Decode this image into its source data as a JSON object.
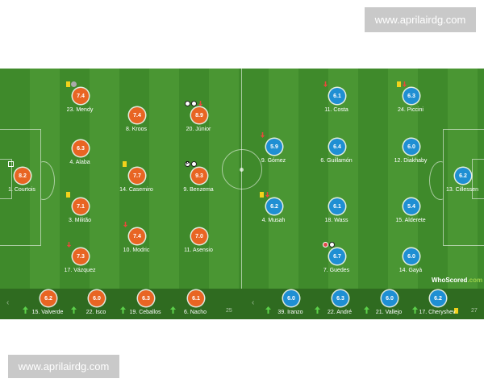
{
  "watermark": {
    "top": "www.aprilairdg.com",
    "bottom": "www.aprilairdg.com"
  },
  "brand": {
    "who": "WhoScored",
    "dot": ".com"
  },
  "colors": {
    "home": "#e86523",
    "away": "#1f8fd3",
    "pitch": "#3f8a2b",
    "card": "#f2d21b"
  },
  "home": {
    "starters": [
      {
        "num": "23",
        "name": "Mendy",
        "rating": "7.4",
        "icons": [
          "yellow-card",
          "assist-icon"
        ]
      },
      {
        "num": "4",
        "name": "Alaba",
        "rating": "6.3",
        "icons": []
      },
      {
        "num": "3",
        "name": "Militão",
        "rating": "7.1",
        "icons": [
          "yellow-card"
        ]
      },
      {
        "num": "17",
        "name": "Vázquez",
        "rating": "7.3",
        "icons": [
          "sub-off-arrow"
        ]
      },
      {
        "num": "1",
        "name": "Courtois",
        "rating": "8.2",
        "icons": [
          "gloves-icon"
        ]
      },
      {
        "num": "8",
        "name": "Kroos",
        "rating": "7.4",
        "icons": []
      },
      {
        "num": "14",
        "name": "Casemiro",
        "rating": "7.7",
        "icons": [
          "yellow-card"
        ]
      },
      {
        "num": "10",
        "name": "Modric",
        "rating": "7.4",
        "icons": [
          "sub-off-arrow"
        ]
      },
      {
        "num": "20",
        "name": "Júnior",
        "rating": "8.9",
        "icons": [
          "goal-ball",
          "goal-ball",
          "sub-off-arrow"
        ]
      },
      {
        "num": "9",
        "name": "Benzema",
        "rating": "9.3",
        "icons": [
          "penalty-goal",
          "goal-ball"
        ]
      },
      {
        "num": "11",
        "name": "Asensio",
        "rating": "7.0",
        "icons": []
      }
    ],
    "subs": [
      {
        "num": "15",
        "name": "Valverde",
        "rating": "6.2"
      },
      {
        "num": "22",
        "name": "Isco",
        "rating": "6.0"
      },
      {
        "num": "19",
        "name": "Ceballos",
        "rating": "6.3"
      },
      {
        "num": "6",
        "name": "Nacho",
        "rating": "6.1"
      }
    ],
    "count": "25"
  },
  "away": {
    "starters": [
      {
        "num": "11",
        "name": "Costa",
        "rating": "6.1",
        "icons": [
          "sub-off-arrow"
        ]
      },
      {
        "num": "24",
        "name": "Piccini",
        "rating": "6.3",
        "icons": [
          "yellow-card",
          "sub-off-arrow"
        ]
      },
      {
        "num": "9",
        "name": "Gómez",
        "rating": "5.9",
        "icons": [
          "sub-off-arrow"
        ]
      },
      {
        "num": "6",
        "name": "Guillamón",
        "rating": "6.4",
        "icons": []
      },
      {
        "num": "12",
        "name": "Diakhaby",
        "rating": "6.0",
        "icons": []
      },
      {
        "num": "4",
        "name": "Musah",
        "rating": "6.2",
        "icons": [
          "yellow-card",
          "sub-off-arrow"
        ]
      },
      {
        "num": "18",
        "name": "Wass",
        "rating": "6.1",
        "icons": []
      },
      {
        "num": "15",
        "name": "Alderete",
        "rating": "5.4",
        "icons": []
      },
      {
        "num": "7",
        "name": "Guedes",
        "rating": "6.7",
        "icons": [
          "own-goal",
          "goal-ball"
        ]
      },
      {
        "num": "14",
        "name": "Gayà",
        "rating": "6.0",
        "icons": []
      },
      {
        "num": "13",
        "name": "Cillessen",
        "rating": "6.2",
        "icons": []
      }
    ],
    "subs": [
      {
        "num": "39",
        "name": "Iranzo",
        "rating": "6.0"
      },
      {
        "num": "22",
        "name": "André",
        "rating": "6.3"
      },
      {
        "num": "21",
        "name": "Vallejo",
        "rating": "6.0"
      },
      {
        "num": "17",
        "name": "Cheryshev",
        "rating": "6.2"
      }
    ],
    "count": "27"
  }
}
